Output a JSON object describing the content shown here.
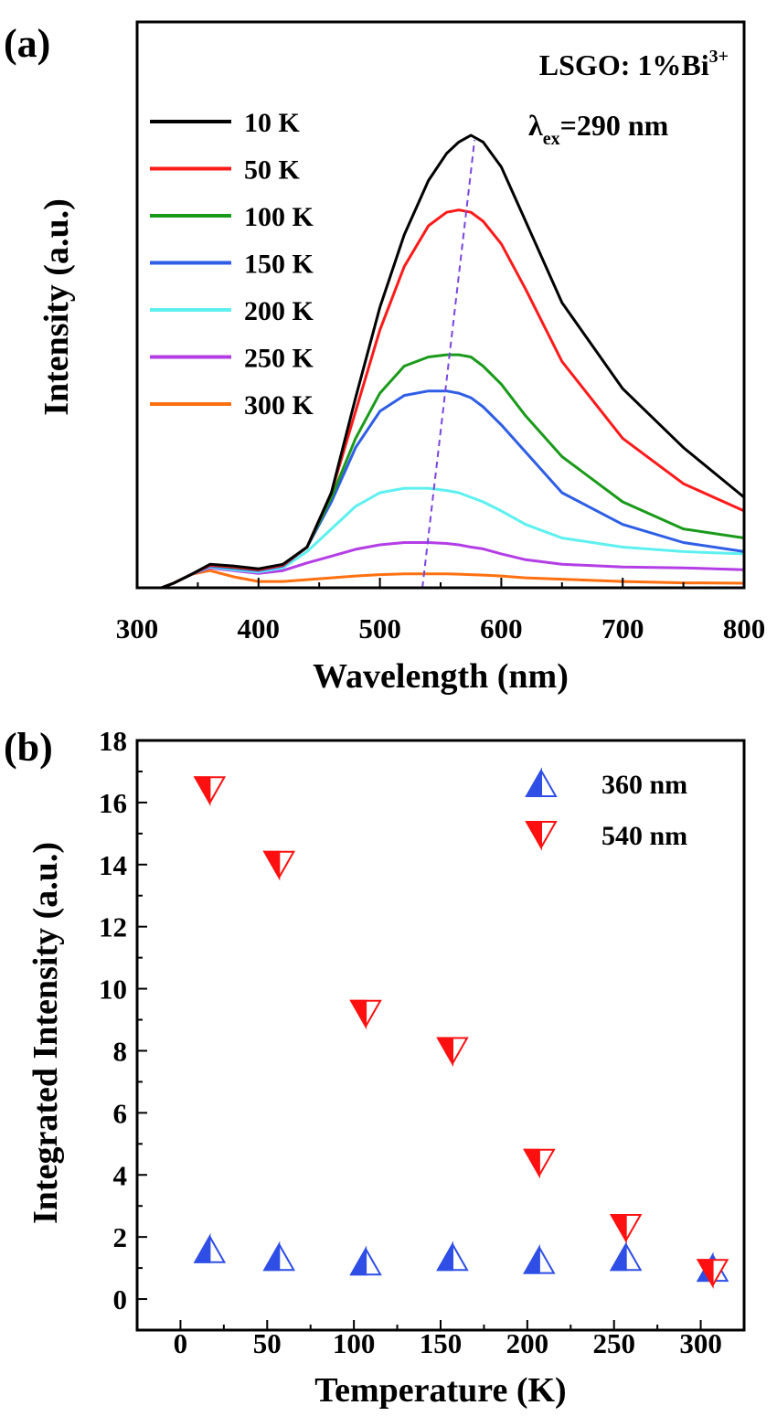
{
  "chart_data": [
    {
      "panel_label": "(a)",
      "type": "line",
      "xlabel": "Wavelength (nm)",
      "ylabel": "Intensity (a.u.)",
      "xlim": [
        300,
        800
      ],
      "ylim": [
        0,
        1
      ],
      "x_ticks": [
        "300",
        "400",
        "500",
        "600",
        "700",
        "800"
      ],
      "annotation_sample_prefix": "LSGO: 1%Bi",
      "annotation_sample_sup": "3+",
      "annotation_excitation_prefix": "λ",
      "annotation_excitation_sub": "ex",
      "annotation_excitation_value": "=290 nm",
      "legend_position": "top-left",
      "series": [
        {
          "name": "10 K",
          "color": "#000000",
          "x": [
            320,
            330,
            345,
            360,
            380,
            400,
            420,
            440,
            460,
            480,
            500,
            520,
            540,
            555,
            565,
            575,
            585,
            600,
            620,
            650,
            700,
            750,
            800
          ],
          "y": [
            0.0,
            0.01,
            0.03,
            0.052,
            0.048,
            0.042,
            0.052,
            0.09,
            0.21,
            0.42,
            0.62,
            0.78,
            0.9,
            0.96,
            0.985,
            1.0,
            0.985,
            0.93,
            0.81,
            0.63,
            0.44,
            0.31,
            0.2
          ]
        },
        {
          "name": "50 K",
          "color": "#ff1a1a",
          "x": [
            320,
            330,
            345,
            360,
            380,
            400,
            420,
            440,
            460,
            480,
            500,
            520,
            540,
            555,
            565,
            575,
            585,
            600,
            620,
            650,
            700,
            750,
            800
          ],
          "y": [
            0.0,
            0.01,
            0.03,
            0.05,
            0.046,
            0.04,
            0.05,
            0.09,
            0.21,
            0.39,
            0.57,
            0.71,
            0.8,
            0.83,
            0.835,
            0.83,
            0.81,
            0.76,
            0.66,
            0.5,
            0.33,
            0.23,
            0.17
          ]
        },
        {
          "name": "100 K",
          "color": "#1a9a1a",
          "x": [
            320,
            330,
            345,
            360,
            380,
            400,
            420,
            440,
            460,
            480,
            500,
            520,
            540,
            555,
            565,
            575,
            585,
            600,
            620,
            650,
            700,
            750,
            800
          ],
          "y": [
            0.0,
            0.01,
            0.03,
            0.05,
            0.045,
            0.04,
            0.05,
            0.09,
            0.2,
            0.33,
            0.43,
            0.49,
            0.51,
            0.515,
            0.515,
            0.51,
            0.49,
            0.45,
            0.38,
            0.29,
            0.19,
            0.13,
            0.11
          ]
        },
        {
          "name": "150 K",
          "color": "#2e5ee6",
          "x": [
            320,
            330,
            345,
            360,
            380,
            400,
            420,
            440,
            460,
            480,
            500,
            520,
            540,
            555,
            565,
            575,
            585,
            600,
            620,
            650,
            700,
            750,
            800
          ],
          "y": [
            0.0,
            0.01,
            0.03,
            0.048,
            0.043,
            0.038,
            0.048,
            0.09,
            0.19,
            0.31,
            0.39,
            0.425,
            0.435,
            0.435,
            0.43,
            0.42,
            0.4,
            0.36,
            0.3,
            0.21,
            0.14,
            0.1,
            0.08
          ]
        },
        {
          "name": "200 K",
          "color": "#5ef0f0",
          "x": [
            320,
            330,
            345,
            360,
            380,
            400,
            420,
            440,
            460,
            480,
            500,
            520,
            540,
            555,
            565,
            575,
            585,
            600,
            620,
            650,
            700,
            750,
            800
          ],
          "y": [
            0.0,
            0.01,
            0.03,
            0.046,
            0.04,
            0.035,
            0.044,
            0.08,
            0.13,
            0.18,
            0.21,
            0.22,
            0.22,
            0.215,
            0.21,
            0.2,
            0.19,
            0.17,
            0.14,
            0.11,
            0.09,
            0.08,
            0.075
          ]
        },
        {
          "name": "250 K",
          "color": "#b43ee6",
          "x": [
            320,
            330,
            345,
            360,
            380,
            400,
            420,
            440,
            460,
            480,
            500,
            520,
            540,
            555,
            565,
            575,
            585,
            600,
            620,
            650,
            700,
            750,
            800
          ],
          "y": [
            0.0,
            0.01,
            0.03,
            0.044,
            0.038,
            0.032,
            0.038,
            0.055,
            0.07,
            0.085,
            0.095,
            0.1,
            0.1,
            0.098,
            0.095,
            0.09,
            0.086,
            0.075,
            0.062,
            0.052,
            0.046,
            0.044,
            0.04
          ]
        },
        {
          "name": "300 K",
          "color": "#ff7010",
          "x": [
            320,
            330,
            345,
            360,
            380,
            400,
            420,
            440,
            460,
            480,
            500,
            520,
            540,
            555,
            565,
            575,
            585,
            600,
            620,
            650,
            700,
            750,
            800
          ],
          "y": [
            0.0,
            0.01,
            0.03,
            0.038,
            0.024,
            0.014,
            0.014,
            0.018,
            0.022,
            0.026,
            0.029,
            0.031,
            0.031,
            0.031,
            0.03,
            0.029,
            0.028,
            0.026,
            0.022,
            0.019,
            0.014,
            0.011,
            0.01
          ]
        }
      ],
      "peak_shift_line": {
        "x": [
          535,
          578
        ],
        "y": [
          0.0,
          0.99
        ],
        "color": "#7a45e0",
        "style": "dashed"
      }
    },
    {
      "panel_label": "(b)",
      "type": "scatter",
      "xlabel": "Temperature (K)",
      "ylabel": "Integrated Intensity (a.u.)",
      "xlim": [
        -25,
        325
      ],
      "ylim": [
        -1,
        18
      ],
      "x_ticks": [
        "0",
        "50",
        "100",
        "150",
        "200",
        "250",
        "300"
      ],
      "y_ticks": [
        "0",
        "2",
        "4",
        "6",
        "8",
        "10",
        "12",
        "14",
        "16",
        "18"
      ],
      "legend_position": "top-right",
      "series": [
        {
          "name": "360 nm",
          "marker": "triangle-up-half-filled",
          "color": "#2e4ee6",
          "x": [
            10,
            50,
            100,
            150,
            200,
            250,
            300
          ],
          "y": [
            1.6,
            1.35,
            1.2,
            1.35,
            1.25,
            1.35,
            1.0
          ]
        },
        {
          "name": "540 nm",
          "marker": "triangle-down-half-filled",
          "color": "#ff1010",
          "x": [
            10,
            50,
            100,
            150,
            200,
            250,
            300
          ],
          "y": [
            16.4,
            14.0,
            9.2,
            8.0,
            4.4,
            2.3,
            0.85
          ]
        }
      ]
    }
  ]
}
